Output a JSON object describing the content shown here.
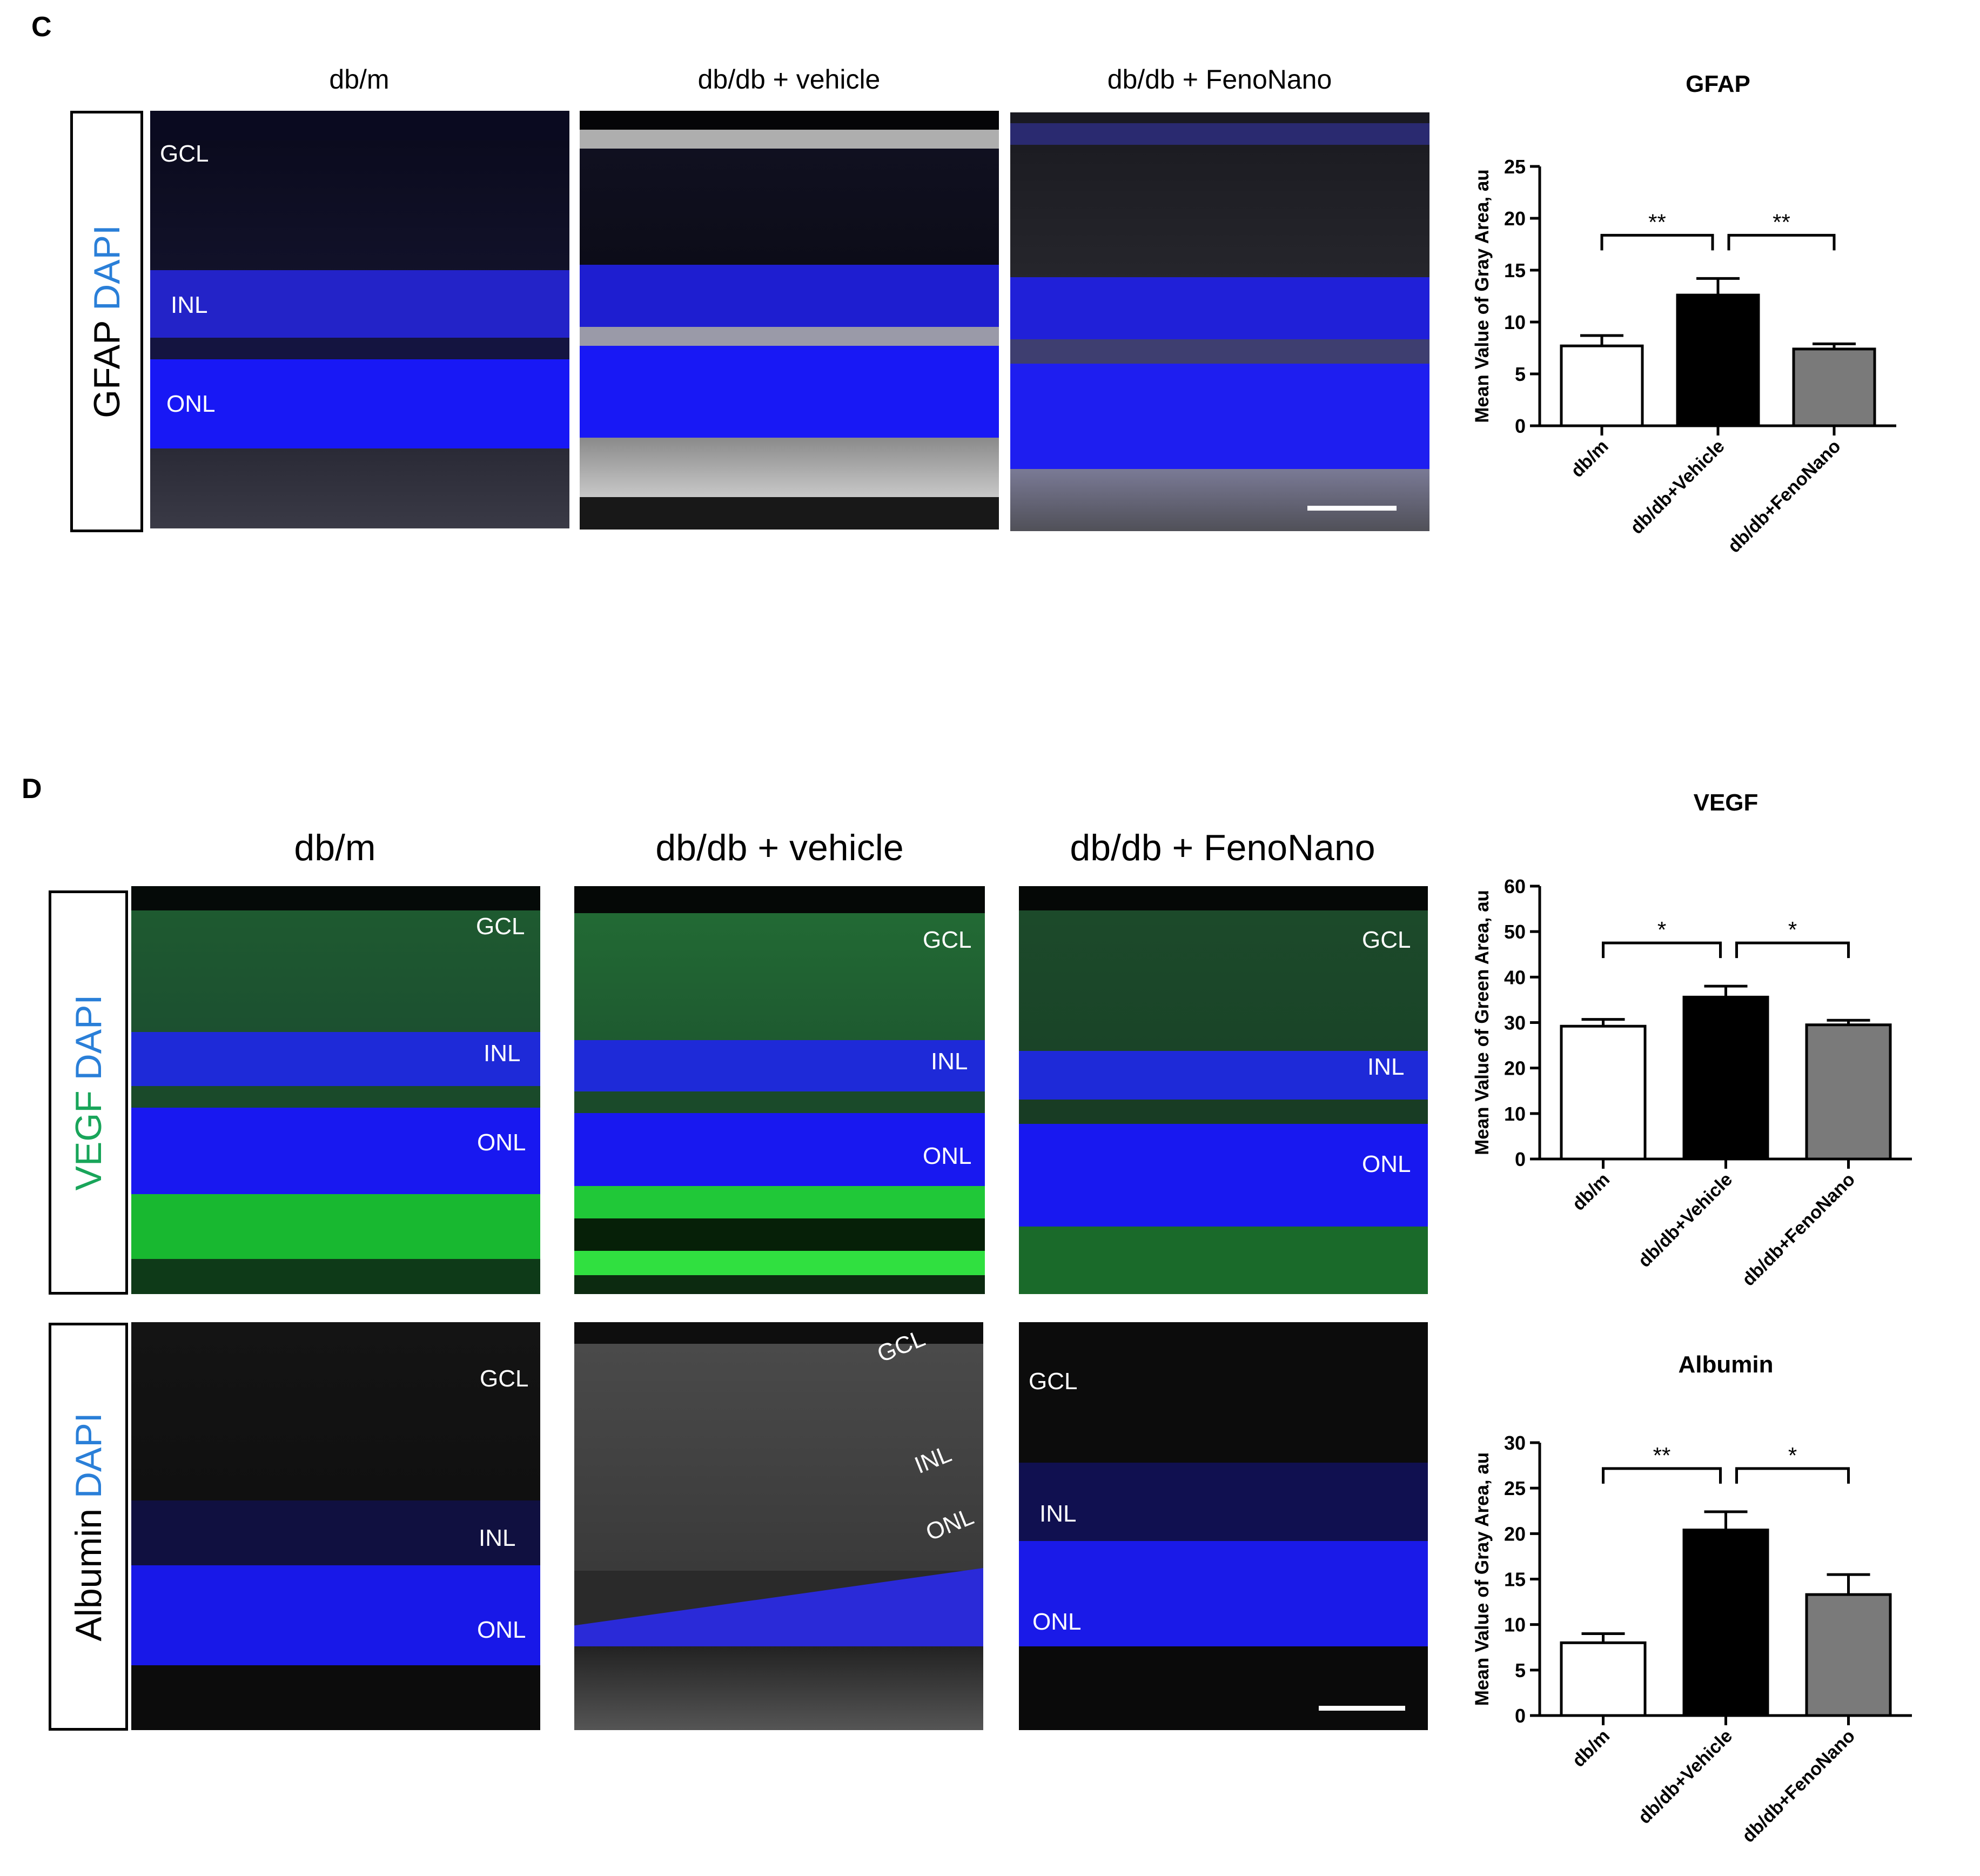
{
  "panels": {
    "c": {
      "letter": "C",
      "column_titles": [
        "db/m",
        "db/db + vehicle",
        "db/db + FenoNano"
      ],
      "stain": {
        "primary": "GFAP",
        "secondary": "DAPI"
      },
      "layer_labels": {
        "gcl": "GCL",
        "inl": "INL",
        "onl": "ONL"
      }
    },
    "d": {
      "letter": "D",
      "column_titles": [
        "db/m",
        "db/db + vehicle",
        "db/db + FenoNano"
      ],
      "stain_top": {
        "primary": "VEGF",
        "secondary": "DAPI"
      },
      "stain_bottom": {
        "primary": "Albumin",
        "secondary": "DAPI"
      },
      "layer_labels": {
        "gcl": "GCL",
        "inl": "INL",
        "onl": "ONL"
      }
    }
  },
  "colors": {
    "dapi_blue": "#1a1aff",
    "vegf_green": "#00c040",
    "bar_white": "#ffffff",
    "bar_black": "#000000",
    "bar_gray": "#7a7a7a"
  },
  "chart_data": [
    {
      "type": "bar",
      "title": "GFAP",
      "ylabel": "Mean Value of Gray Area, au",
      "categories": [
        "db/m",
        "db/db+Vehicle",
        "db/db+FenoNano"
      ],
      "values": [
        7.7,
        12.6,
        7.4
      ],
      "errors": [
        1.0,
        1.6,
        0.5
      ],
      "ylim": [
        0,
        25
      ],
      "yticks": [
        0,
        5,
        10,
        15,
        20,
        25
      ],
      "significance": [
        {
          "from": 0,
          "to": 1,
          "label": "**"
        },
        {
          "from": 1,
          "to": 2,
          "label": "**"
        }
      ]
    },
    {
      "type": "bar",
      "title": "VEGF",
      "ylabel": "Mean Value of Green Area, au",
      "categories": [
        "db/m",
        "db/db+Vehicle",
        "db/db+FenoNano"
      ],
      "values": [
        29.2,
        35.6,
        29.5
      ],
      "errors": [
        1.5,
        2.4,
        1.0
      ],
      "ylim": [
        0,
        60
      ],
      "yticks": [
        0,
        10,
        20,
        30,
        40,
        50,
        60
      ],
      "significance": [
        {
          "from": 0,
          "to": 1,
          "label": "*"
        },
        {
          "from": 1,
          "to": 2,
          "label": "*"
        }
      ]
    },
    {
      "type": "bar",
      "title": "Albumin",
      "ylabel": "Mean Value of Gray Area, au",
      "categories": [
        "db/m",
        "db/db+Vehicle",
        "db/db+FenoNano"
      ],
      "values": [
        8.0,
        20.4,
        13.3
      ],
      "errors": [
        1.0,
        2.0,
        2.2
      ],
      "ylim": [
        0,
        30
      ],
      "yticks": [
        0,
        5,
        10,
        15,
        20,
        25,
        30
      ],
      "significance": [
        {
          "from": 0,
          "to": 1,
          "label": "**"
        },
        {
          "from": 1,
          "to": 2,
          "label": "*"
        }
      ]
    }
  ]
}
